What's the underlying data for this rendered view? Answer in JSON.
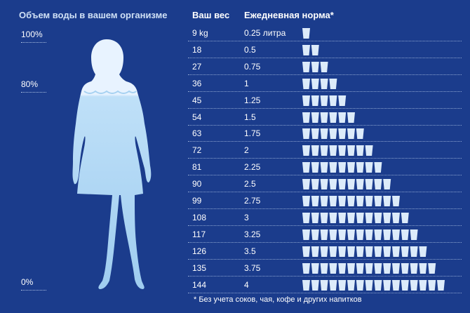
{
  "left_title": "Объем воды в вашем организме",
  "percent_labels": [
    "100%",
    "80%",
    "0%"
  ],
  "headers": {
    "weight": "Ваш вес",
    "norm": "Ежедневная норма*"
  },
  "rows": [
    {
      "weight": "9 kg",
      "norm": "0.25 литра",
      "glasses": 1
    },
    {
      "weight": "18",
      "norm": "0.5",
      "glasses": 2
    },
    {
      "weight": "27",
      "norm": "0.75",
      "glasses": 3
    },
    {
      "weight": "36",
      "norm": "1",
      "glasses": 4
    },
    {
      "weight": "45",
      "norm": "1.25",
      "glasses": 5
    },
    {
      "weight": "54",
      "norm": "1.5",
      "glasses": 6
    },
    {
      "weight": "63",
      "norm": "1.75",
      "glasses": 7
    },
    {
      "weight": "72",
      "norm": "2",
      "glasses": 8
    },
    {
      "weight": "81",
      "norm": "2.25",
      "glasses": 9
    },
    {
      "weight": "90",
      "norm": "2.5",
      "glasses": 10
    },
    {
      "weight": "99",
      "norm": "2.75",
      "glasses": 11
    },
    {
      "weight": "108",
      "norm": "3",
      "glasses": 12
    },
    {
      "weight": "117",
      "norm": "3.25",
      "glasses": 13
    },
    {
      "weight": "126",
      "norm": "3.5",
      "glasses": 14
    },
    {
      "weight": "135",
      "norm": "3.75",
      "glasses": 15
    },
    {
      "weight": "144",
      "norm": "4",
      "glasses": 16
    }
  ],
  "footnote": "* Без учета соков, чая, кофе и других напитков",
  "colors": {
    "background": "#1b3c8c",
    "glass": "#dcebfa",
    "figure_light": "#e8f3ff",
    "figure_dark": "#aad2f2"
  },
  "chart_data": {
    "type": "table",
    "columns": [
      "Ваш вес",
      "Ежедневная норма*"
    ],
    "x": [
      "9 kg",
      "18",
      "27",
      "36",
      "45",
      "54",
      "63",
      "72",
      "81",
      "90",
      "99",
      "108",
      "117",
      "126",
      "135",
      "144"
    ],
    "values": [
      0.25,
      0.5,
      0.75,
      1,
      1.25,
      1.5,
      1.75,
      2,
      2.25,
      2.5,
      2.75,
      3,
      3.25,
      3.5,
      3.75,
      4
    ],
    "water_level_percent": 80
  }
}
